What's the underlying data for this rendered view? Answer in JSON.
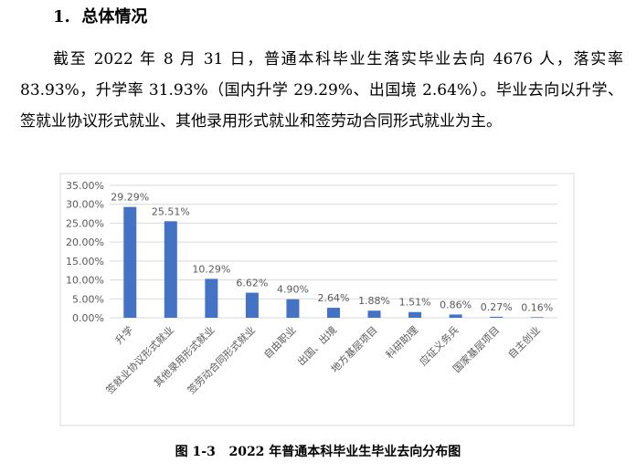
{
  "heading": "1.  总体情况",
  "paragraph": "截至 2022 年 8 月 31 日，普通本科毕业生落实毕业去向 4676 人，落实率 83.93%，升学率 31.93%（国内升学 29.29%、出国境 2.64%）。毕业去向以升学、签就业协议形式就业、其他录用形式就业和签劳动合同形式就业为主。",
  "chart_data": {
    "type": "bar",
    "categories": [
      "升学",
      "签就业协议形式就业",
      "其他录用形式就业",
      "签劳动合同形式就业",
      "自由职业",
      "出国、出境",
      "地方基层项目",
      "科研助理",
      "应征义务兵",
      "国家基层项目",
      "自主创业"
    ],
    "values": [
      29.29,
      25.51,
      10.29,
      6.62,
      4.9,
      2.64,
      1.88,
      1.51,
      0.86,
      0.27,
      0.16
    ],
    "value_labels": [
      "29.29%",
      "25.51%",
      "10.29%",
      "6.62%",
      "4.90%",
      "2.64%",
      "1.88%",
      "1.51%",
      "0.86%",
      "0.27%",
      "0.16%"
    ],
    "color": "#4472c4",
    "ylim": [
      0,
      35
    ],
    "yticks": [
      {
        "value": 0,
        "label": "0.00%"
      },
      {
        "value": 5,
        "label": "5.00%"
      },
      {
        "value": 10,
        "label": "10.00%"
      },
      {
        "value": 15,
        "label": "15.00%"
      },
      {
        "value": 20,
        "label": "20.00%"
      },
      {
        "value": 25,
        "label": "25.00%"
      },
      {
        "value": 30,
        "label": "30.00%"
      },
      {
        "value": 35,
        "label": "35.00%"
      }
    ],
    "grid": true
  },
  "caption": "图 1-3   2022 年普通本科毕业生毕业去向分布图"
}
